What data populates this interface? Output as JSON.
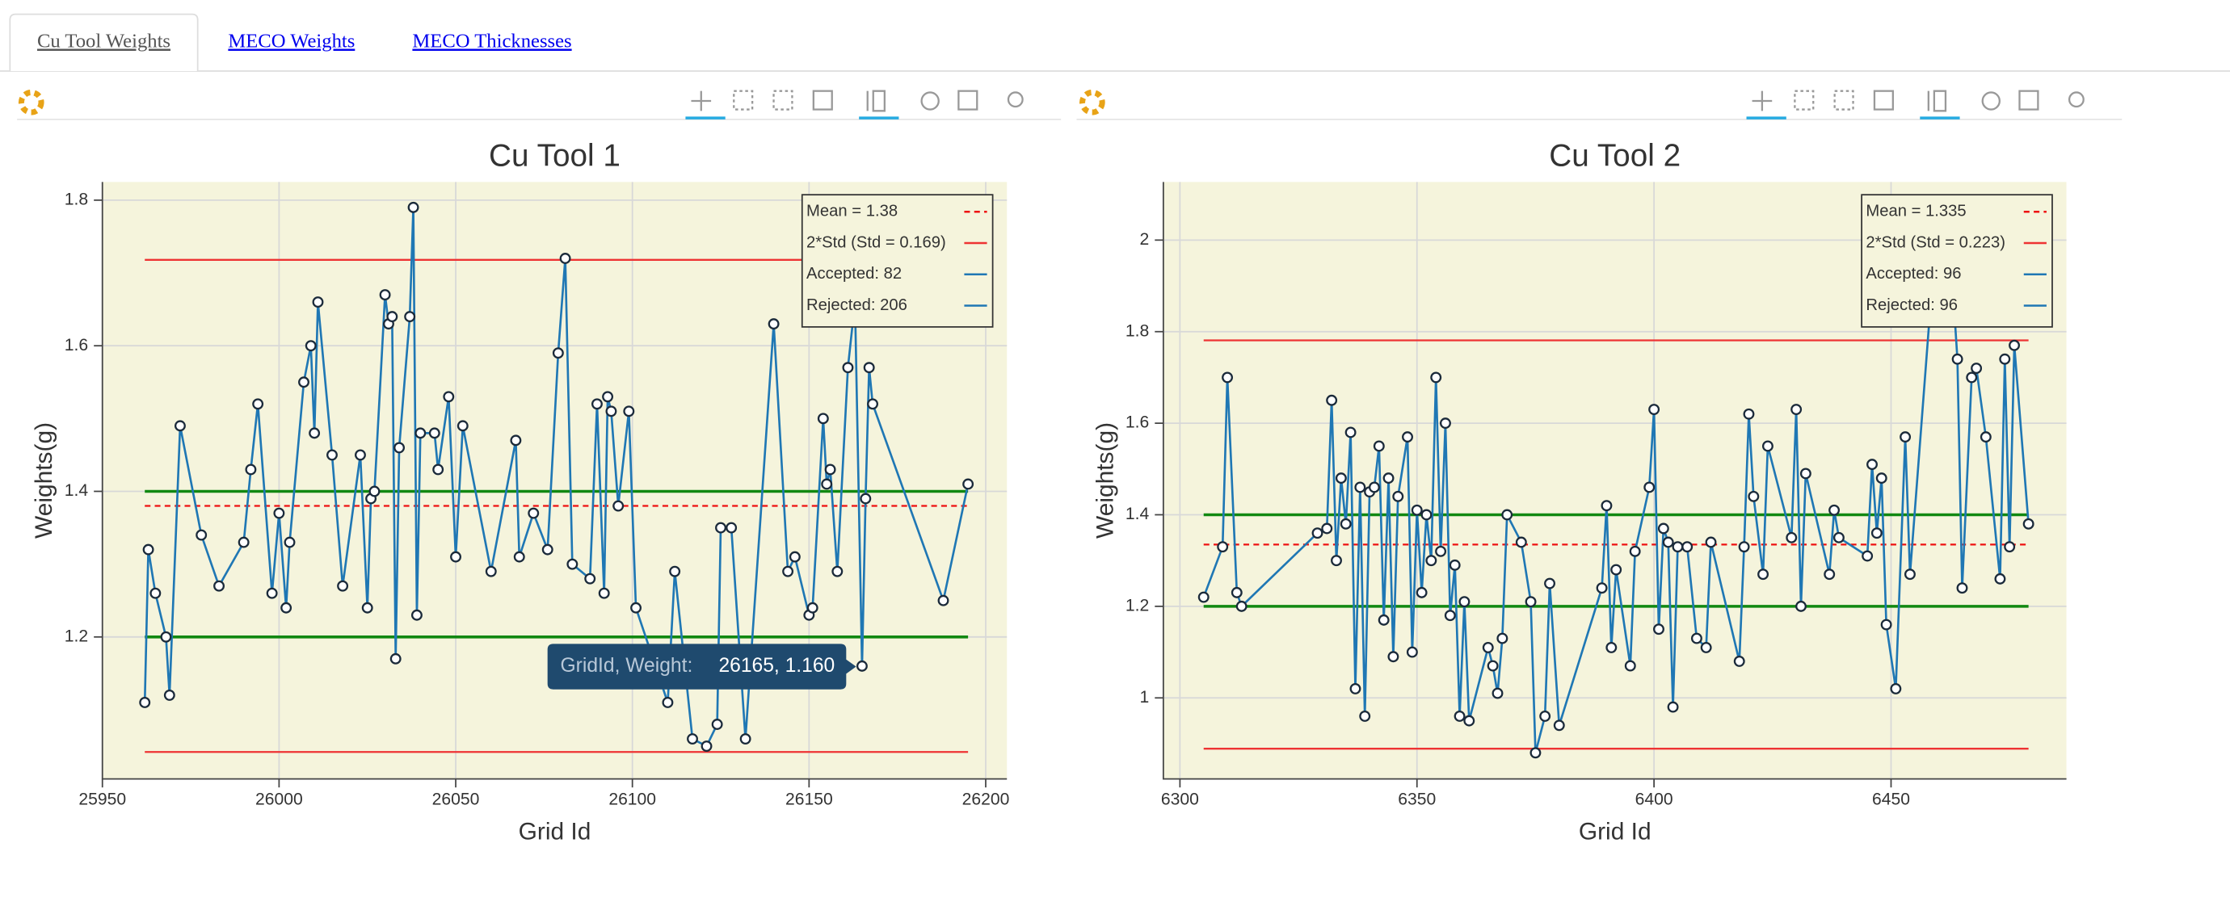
{
  "tabs": [
    "Cu Tool Weights",
    "MECO Weights",
    "MECO Thicknesses"
  ],
  "chart_data": [
    {
      "type": "line",
      "title": "Cu Tool 1",
      "x_label": "Grid Id",
      "y_label": "Weights(g)",
      "color": "#1f77b4",
      "marker_fill": "#ffffff",
      "marker_stroke": "#1b2a3a",
      "x": [
        25962,
        25963,
        25965,
        25968,
        25969,
        25972,
        25978,
        25983,
        25990,
        25992,
        25994,
        25998,
        26000,
        26002,
        26003,
        26007,
        26009,
        26010,
        26011,
        26015,
        26018,
        26023,
        26025,
        26026,
        26027,
        26030,
        26031,
        26032,
        26033,
        26034,
        26037,
        26038,
        26039,
        26040,
        26044,
        26045,
        26048,
        26050,
        26052,
        26060,
        26067,
        26068,
        26072,
        26076,
        26079,
        26081,
        26083,
        26088,
        26090,
        26092,
        26093,
        26094,
        26096,
        26099,
        26101,
        26110,
        26112,
        26117,
        26121,
        26124,
        26125,
        26128,
        26132,
        26140,
        26144,
        26146,
        26150,
        26151,
        26154,
        26155,
        26156,
        26158,
        26161,
        26163,
        26165,
        26166,
        26167,
        26168,
        26188,
        26195
      ],
      "values": [
        1.11,
        1.32,
        1.26,
        1.2,
        1.12,
        1.49,
        1.34,
        1.27,
        1.33,
        1.43,
        1.52,
        1.26,
        1.37,
        1.24,
        1.33,
        1.55,
        1.6,
        1.48,
        1.66,
        1.45,
        1.27,
        1.45,
        1.24,
        1.39,
        1.4,
        1.67,
        1.63,
        1.64,
        1.17,
        1.46,
        1.64,
        1.79,
        1.23,
        1.48,
        1.48,
        1.43,
        1.53,
        1.31,
        1.49,
        1.29,
        1.47,
        1.31,
        1.37,
        1.32,
        1.59,
        1.72,
        1.3,
        1.28,
        1.52,
        1.26,
        1.53,
        1.51,
        1.38,
        1.51,
        1.24,
        1.11,
        1.29,
        1.06,
        1.05,
        1.08,
        1.35,
        1.35,
        1.06,
        1.63,
        1.29,
        1.31,
        1.23,
        1.24,
        1.5,
        1.41,
        1.43,
        1.29,
        1.57,
        1.66,
        1.16,
        1.39,
        1.57,
        1.52,
        1.25,
        1.41
      ],
      "xlim": [
        25950,
        26206
      ],
      "xticks": [
        25950,
        26000,
        26050,
        26100,
        26150,
        26200
      ],
      "ylim": [
        1.005,
        1.825
      ],
      "yticks": [
        1.2,
        1.4,
        1.6,
        1.8
      ],
      "grid": true,
      "hlines": [
        {
          "value": 1.38,
          "color": "#ee1111",
          "dash": true
        },
        {
          "value": 1.718,
          "color": "#ee3333",
          "dash": false
        },
        {
          "value": 1.042,
          "color": "#ee3333",
          "dash": false
        },
        {
          "value": 1.4,
          "color": "#118811",
          "dash": false
        },
        {
          "value": 1.2,
          "color": "#118811",
          "dash": false
        }
      ],
      "legend_position": "top-right",
      "legend": [
        {
          "label": "Mean = 1.38",
          "color": "#ee1111",
          "dash": true
        },
        {
          "label": "2*Std (Std = 0.169)",
          "color": "#ee3333",
          "dash": false
        },
        {
          "label": "Accepted: 82",
          "color": "#1f77b4",
          "dash": false
        },
        {
          "label": "Rejected: 206",
          "color": "#1f77b4",
          "dash": false
        }
      ],
      "tooltip": {
        "label": "GridId, Weight:",
        "text": "26165, 1.160"
      }
    },
    {
      "type": "line",
      "title": "Cu Tool 2",
      "x_label": "Grid Id",
      "y_label": "Weights(g)",
      "color": "#1f77b4",
      "marker_fill": "#ffffff",
      "marker_stroke": "#1b2a3a",
      "x": [
        6305,
        6309,
        6310,
        6312,
        6313,
        6329,
        6331,
        6332,
        6333,
        6334,
        6335,
        6336,
        6337,
        6338,
        6339,
        6340,
        6341,
        6342,
        6343,
        6344,
        6345,
        6346,
        6348,
        6349,
        6350,
        6351,
        6352,
        6353,
        6354,
        6355,
        6356,
        6357,
        6358,
        6359,
        6360,
        6361,
        6365,
        6366,
        6367,
        6368,
        6369,
        6372,
        6374,
        6375,
        6377,
        6378,
        6380,
        6389,
        6390,
        6391,
        6392,
        6395,
        6396,
        6399,
        6400,
        6401,
        6402,
        6403,
        6404,
        6405,
        6407,
        6409,
        6411,
        6412,
        6418,
        6419,
        6420,
        6421,
        6423,
        6424,
        6429,
        6430,
        6431,
        6432,
        6437,
        6438,
        6439,
        6445,
        6446,
        6447,
        6448,
        6449,
        6451,
        6453,
        6454,
        6459,
        6463,
        6464,
        6465,
        6467,
        6468,
        6470,
        6473,
        6474,
        6475,
        6476,
        6479
      ],
      "values": [
        1.22,
        1.33,
        1.7,
        1.23,
        1.2,
        1.36,
        1.37,
        1.65,
        1.3,
        1.48,
        1.38,
        1.58,
        1.02,
        1.46,
        0.96,
        1.45,
        1.46,
        1.55,
        1.17,
        1.48,
        1.09,
        1.44,
        1.57,
        1.1,
        1.41,
        1.23,
        1.4,
        1.3,
        1.7,
        1.32,
        1.6,
        1.18,
        1.29,
        0.96,
        1.21,
        0.95,
        1.11,
        1.07,
        1.01,
        1.13,
        1.4,
        1.34,
        1.21,
        0.88,
        0.96,
        1.25,
        0.94,
        1.24,
        1.42,
        1.11,
        1.28,
        1.07,
        1.32,
        1.46,
        1.63,
        1.15,
        1.37,
        1.34,
        0.98,
        1.33,
        1.33,
        1.13,
        1.11,
        1.34,
        1.08,
        1.33,
        1.62,
        1.44,
        1.27,
        1.55,
        1.35,
        1.63,
        1.2,
        1.49,
        1.27,
        1.41,
        1.35,
        1.31,
        1.51,
        1.36,
        1.48,
        1.16,
        1.02,
        1.57,
        1.27,
        1.95,
        1.9,
        1.74,
        1.24,
        1.7,
        1.72,
        1.57,
        1.26,
        1.74,
        1.33,
        1.77,
        1.38
      ],
      "xlim": [
        6296.5,
        6487
      ],
      "xticks": [
        6300,
        6350,
        6400,
        6450
      ],
      "ylim": [
        0.823,
        2.127
      ],
      "yticks": [
        1,
        1.2,
        1.4,
        1.6,
        1.8,
        2
      ],
      "grid": true,
      "hlines": [
        {
          "value": 1.335,
          "color": "#ee1111",
          "dash": true
        },
        {
          "value": 1.781,
          "color": "#ee3333",
          "dash": false
        },
        {
          "value": 0.889,
          "color": "#ee3333",
          "dash": false
        },
        {
          "value": 1.4,
          "color": "#118811",
          "dash": false
        },
        {
          "value": 1.2,
          "color": "#118811",
          "dash": false
        }
      ],
      "legend_position": "top-right",
      "legend": [
        {
          "label": "Mean = 1.335",
          "color": "#ee1111",
          "dash": true
        },
        {
          "label": "2*Std (Std = 0.223)",
          "color": "#ee3333",
          "dash": false
        },
        {
          "label": "Accepted: 96",
          "color": "#1f77b4",
          "dash": false
        },
        {
          "label": "Rejected: 96",
          "color": "#1f77b4",
          "dash": false
        }
      ]
    }
  ]
}
